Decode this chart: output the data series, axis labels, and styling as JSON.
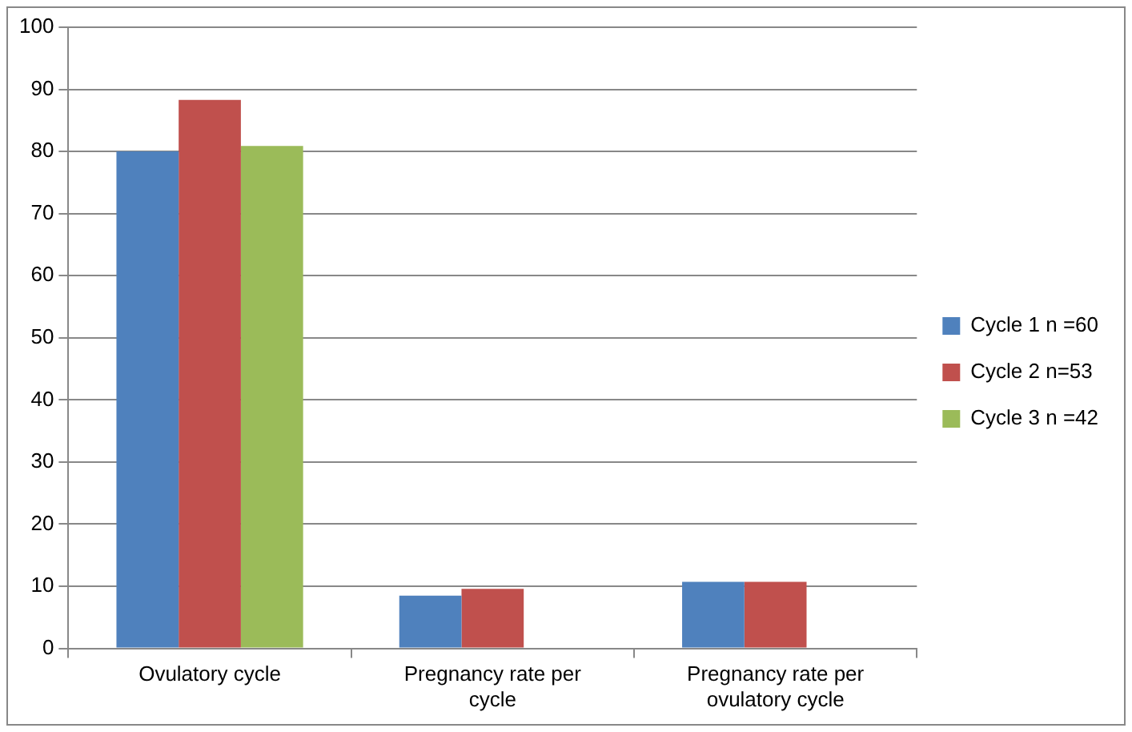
{
  "chart_data": {
    "type": "bar",
    "categories": [
      "Ovulatory cycle",
      "Pregnancy rate per cycle",
      "Pregnancy rate per ovulatory cycle"
    ],
    "series": [
      {
        "name": "Cycle 1 n =60",
        "color": "#4f81bd",
        "values": [
          80,
          8.5,
          10.7
        ]
      },
      {
        "name": "Cycle 2 n=53",
        "color": "#c0504d",
        "values": [
          88.3,
          9.6,
          10.7
        ]
      },
      {
        "name": "Cycle 3 n =42",
        "color": "#9bbb59",
        "values": [
          80.9,
          null,
          null
        ]
      }
    ],
    "ylim": [
      0,
      100
    ],
    "yticks": [
      0,
      10,
      20,
      30,
      40,
      50,
      60,
      70,
      80,
      90,
      100
    ],
    "grid": "y",
    "legend": "right"
  }
}
